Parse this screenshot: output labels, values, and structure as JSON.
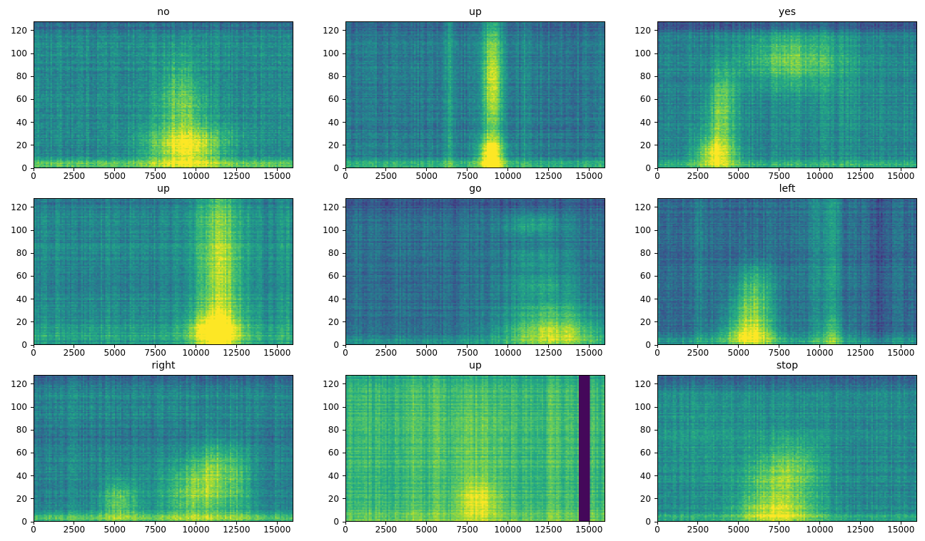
{
  "figure": {
    "background": "#ffffff",
    "colormap": "viridis",
    "layout": "3x3 grid of audio spectrograms (speech commands)",
    "colormap_hex_anchors": [
      "#440154",
      "#472c7a",
      "#3b518b",
      "#2c718e",
      "#21908c",
      "#27ad81",
      "#5cc863",
      "#aadc32",
      "#fde725"
    ]
  },
  "chart_data": [
    {
      "type": "heatmap",
      "title": "no",
      "xlabel": "",
      "ylabel": "",
      "xlim": [
        0,
        16000
      ],
      "ylim": [
        0,
        128
      ],
      "xticks": [
        0,
        2500,
        5000,
        7500,
        10000,
        12500,
        15000
      ],
      "yticks": [
        0,
        20,
        40,
        60,
        80,
        100,
        120
      ],
      "description": "Green-teal noise background; bright yellow energy around x=7500-11000 concentrated below y=40 with harmonic wisps up to y=100; bright band along y=0; slightly darker band at top.",
      "base": 0.47,
      "noise": 0.13,
      "features": [
        {
          "type": "hband",
          "y": 3,
          "sy": 3,
          "amp": 0.3
        },
        {
          "type": "blob",
          "x": 9300,
          "y": 14,
          "sx": 1500,
          "sy": 11,
          "amp": 0.4
        },
        {
          "type": "blob",
          "x": 9800,
          "y": 25,
          "sx": 2200,
          "sy": 10,
          "amp": 0.15
        },
        {
          "type": "blob",
          "x": 9200,
          "y": 45,
          "sx": 1100,
          "sy": 18,
          "amp": 0.22
        },
        {
          "type": "blob",
          "x": 9000,
          "y": 75,
          "sx": 900,
          "sy": 22,
          "amp": 0.18
        },
        {
          "type": "hband",
          "y": 125,
          "sy": 4,
          "amp": -0.12
        }
      ]
    },
    {
      "type": "heatmap",
      "title": "up",
      "xlabel": "",
      "ylabel": "",
      "xlim": [
        0,
        16000
      ],
      "ylim": [
        0,
        128
      ],
      "xticks": [
        0,
        2500,
        5000,
        7500,
        10000,
        12500,
        15000
      ],
      "yticks": [
        0,
        20,
        40,
        60,
        80,
        100,
        120
      ],
      "description": "Darker blue-teal background; strong vertical bright streak near x=9000 spanning full height, brightest near y=0-20; faint vertical stripes near x=6400 and x=11200; bright band along y=0.",
      "base": 0.4,
      "noise": 0.12,
      "features": [
        {
          "type": "hband",
          "y": 3,
          "sy": 3,
          "amp": 0.28
        },
        {
          "type": "vband",
          "x": 9000,
          "sx": 500,
          "amp": 0.22
        },
        {
          "type": "blob",
          "x": 9000,
          "y": 12,
          "sx": 600,
          "sy": 10,
          "amp": 0.45
        },
        {
          "type": "blob",
          "x": 9100,
          "y": 75,
          "sx": 450,
          "sy": 30,
          "amp": 0.28
        },
        {
          "type": "vband",
          "x": 6400,
          "sx": 250,
          "amp": 0.14
        },
        {
          "type": "vband",
          "x": 11200,
          "sx": 250,
          "amp": 0.1
        },
        {
          "type": "vband",
          "x": 13800,
          "sx": 300,
          "amp": -0.06
        },
        {
          "type": "hband",
          "y": 125,
          "sy": 4,
          "amp": -0.1
        }
      ]
    },
    {
      "type": "heatmap",
      "title": "yes",
      "xlabel": "",
      "ylabel": "",
      "xlim": [
        0,
        16000
      ],
      "ylim": [
        0,
        128
      ],
      "xticks": [
        0,
        2500,
        5000,
        7500,
        10000,
        12500,
        15000
      ],
      "yticks": [
        0,
        20,
        40,
        60,
        80,
        100,
        120
      ],
      "description": "Green background; bright yellow vowel energy at x=2500-5500 in low frequencies with harmonics; broad bright high-frequency fricative patch x=6000-11000 around y=80-115; dark band at top.",
      "base": 0.45,
      "noise": 0.12,
      "features": [
        {
          "type": "blob",
          "x": 3600,
          "y": 12,
          "sx": 900,
          "sy": 10,
          "amp": 0.45
        },
        {
          "type": "blob",
          "x": 3900,
          "y": 40,
          "sx": 700,
          "sy": 20,
          "amp": 0.3
        },
        {
          "type": "blob",
          "x": 4100,
          "y": 70,
          "sx": 600,
          "sy": 15,
          "amp": 0.18
        },
        {
          "type": "blob",
          "x": 8300,
          "y": 95,
          "sx": 2200,
          "sy": 18,
          "amp": 0.3
        },
        {
          "type": "blob",
          "x": 12000,
          "y": 60,
          "sx": 3000,
          "sy": 40,
          "amp": 0.05
        },
        {
          "type": "hband",
          "y": 3,
          "sy": 3,
          "amp": 0.22
        },
        {
          "type": "hband",
          "y": 125,
          "sy": 4,
          "amp": -0.18
        }
      ]
    },
    {
      "type": "heatmap",
      "title": "up",
      "xlabel": "",
      "ylabel": "",
      "xlim": [
        0,
        16000
      ],
      "ylim": [
        0,
        128
      ],
      "xticks": [
        0,
        2500,
        5000,
        7500,
        10000,
        12500,
        15000
      ],
      "yticks": [
        0,
        20,
        40,
        60,
        80,
        100,
        120
      ],
      "description": "Uniform green-teal background; strong bright vertical band x=10000-13000 spanning full height, brightest yellow near y=0-25; faint bright rows along bottom across whole width.",
      "base": 0.47,
      "noise": 0.11,
      "features": [
        {
          "type": "vband",
          "x": 11500,
          "sx": 1100,
          "amp": 0.28
        },
        {
          "type": "blob",
          "x": 11200,
          "y": 12,
          "sx": 1100,
          "sy": 11,
          "amp": 0.4
        },
        {
          "type": "blob",
          "x": 11600,
          "y": 60,
          "sx": 900,
          "sy": 30,
          "amp": 0.15
        },
        {
          "type": "hband",
          "y": 8,
          "sy": 7,
          "amp": 0.12
        },
        {
          "type": "vband",
          "x": 15500,
          "sx": 300,
          "amp": 0.08
        },
        {
          "type": "hband",
          "y": 125,
          "sy": 4,
          "amp": -0.08
        }
      ]
    },
    {
      "type": "heatmap",
      "title": "go",
      "xlabel": "",
      "ylabel": "",
      "xlim": [
        0,
        16000
      ],
      "ylim": [
        0,
        128
      ],
      "xticks": [
        0,
        2500,
        5000,
        7500,
        10000,
        12500,
        15000
      ],
      "yticks": [
        0,
        20,
        40,
        60,
        80,
        100,
        120
      ],
      "description": "Dark blue-teal background; speech energy in right half x=9000-16000 as stacked horizontal harmonic bands, very bright yellow below y=25; dark band at top.",
      "base": 0.37,
      "noise": 0.11,
      "features": [
        {
          "type": "blob",
          "x": 12800,
          "y": 10,
          "sx": 2200,
          "sy": 9,
          "amp": 0.5
        },
        {
          "type": "blob",
          "x": 12500,
          "y": 30,
          "sx": 2000,
          "sy": 8,
          "amp": 0.25
        },
        {
          "type": "blob",
          "x": 12000,
          "y": 52,
          "sx": 1800,
          "sy": 8,
          "amp": 0.22
        },
        {
          "type": "blob",
          "x": 11800,
          "y": 75,
          "sx": 1500,
          "sy": 8,
          "amp": 0.15
        },
        {
          "type": "blob",
          "x": 11500,
          "y": 105,
          "sx": 1300,
          "sy": 8,
          "amp": 0.2
        },
        {
          "type": "hband",
          "y": 3,
          "sy": 3,
          "amp": 0.15
        },
        {
          "type": "hband",
          "y": 124,
          "sy": 5,
          "amp": -0.1
        }
      ]
    },
    {
      "type": "heatmap",
      "title": "left",
      "xlabel": "",
      "ylabel": "",
      "xlim": [
        0,
        16000
      ],
      "ylim": [
        0,
        128
      ],
      "xticks": [
        0,
        2500,
        5000,
        7500,
        10000,
        12500,
        15000
      ],
      "yticks": [
        0,
        20,
        40,
        60,
        80,
        100,
        120
      ],
      "description": "Dark blue background with vertical streak texture; bright yellow harmonic stack x=4000-7000 in low/mid frequencies; bright vertical streaks near x=9600 and x=10600; faint stripe near x=2600; darker region near x=13600.",
      "base": 0.36,
      "noise": 0.12,
      "features": [
        {
          "type": "blob",
          "x": 5800,
          "y": 25,
          "sx": 1000,
          "sy": 18,
          "amp": 0.42
        },
        {
          "type": "blob",
          "x": 5600,
          "y": 8,
          "sx": 1300,
          "sy": 8,
          "amp": 0.35
        },
        {
          "type": "blob",
          "x": 6000,
          "y": 55,
          "sx": 800,
          "sy": 15,
          "amp": 0.2
        },
        {
          "type": "vband",
          "x": 10600,
          "sx": 450,
          "amp": 0.22
        },
        {
          "type": "blob",
          "x": 10800,
          "y": 10,
          "sx": 700,
          "sy": 10,
          "amp": 0.15
        },
        {
          "type": "vband",
          "x": 9600,
          "sx": 200,
          "amp": 0.12
        },
        {
          "type": "vband",
          "x": 2600,
          "sx": 250,
          "amp": 0.1
        },
        {
          "type": "vband",
          "x": 13600,
          "sx": 500,
          "amp": -0.08
        },
        {
          "type": "hband",
          "y": 3,
          "sy": 3,
          "amp": 0.18
        }
      ]
    },
    {
      "type": "heatmap",
      "title": "right",
      "xlabel": "",
      "ylabel": "",
      "xlim": [
        0,
        16000
      ],
      "ylim": [
        0,
        128
      ],
      "xticks": [
        0,
        2500,
        5000,
        7500,
        10000,
        12500,
        15000
      ],
      "yticks": [
        0,
        20,
        40,
        60,
        80,
        100,
        120
      ],
      "description": "Green background; small bright blob x=4500-6000 low frequency; rising bright chirp-like energy x=8000-12500 from y=10 up to y=60; bright band along y=0; darker bands near y=77 and at top.",
      "base": 0.46,
      "noise": 0.12,
      "features": [
        {
          "type": "blob",
          "x": 5300,
          "y": 18,
          "sx": 800,
          "sy": 13,
          "amp": 0.3
        },
        {
          "type": "blob",
          "x": 10200,
          "y": 25,
          "sx": 1600,
          "sy": 18,
          "amp": 0.35
        },
        {
          "type": "blob",
          "x": 11200,
          "y": 50,
          "sx": 900,
          "sy": 18,
          "amp": 0.22
        },
        {
          "type": "blob",
          "x": 12800,
          "y": 35,
          "sx": 500,
          "sy": 25,
          "amp": 0.15
        },
        {
          "type": "vband",
          "x": 2500,
          "sx": 150,
          "amp": 0.08
        },
        {
          "type": "hband",
          "y": 3,
          "sy": 3,
          "amp": 0.28
        },
        {
          "type": "hband",
          "y": 77,
          "sy": 5,
          "amp": -0.08
        },
        {
          "type": "hband",
          "y": 125,
          "sy": 4,
          "amp": -0.15
        }
      ]
    },
    {
      "type": "heatmap",
      "title": "up",
      "xlabel": "",
      "ylabel": "",
      "xlim": [
        0,
        16000
      ],
      "ylim": [
        0,
        128
      ],
      "xticks": [
        0,
        2500,
        5000,
        7500,
        10000,
        12500,
        15000
      ],
      "yticks": [
        0,
        20,
        40,
        60,
        80,
        100,
        120
      ],
      "description": "Very bright yellow-green panel overall (high noise floor); brightest yellow blob near x=7500-9000 below y=35; faint vertical streaks; solid dark purple vertical bar near x=14400-15100 (silence).",
      "base": 0.66,
      "noise": 0.09,
      "features": [
        {
          "type": "blob",
          "x": 8200,
          "y": 18,
          "sx": 900,
          "sy": 13,
          "amp": 0.25
        },
        {
          "type": "blob",
          "x": 8000,
          "y": 60,
          "sx": 1200,
          "sy": 40,
          "amp": 0.08
        },
        {
          "type": "vband",
          "x": 4200,
          "sx": 300,
          "amp": 0.08
        },
        {
          "type": "vband",
          "x": 5600,
          "sx": 250,
          "amp": 0.08
        },
        {
          "type": "vband",
          "x": 12800,
          "sx": 250,
          "amp": 0.06
        },
        {
          "type": "hband",
          "y": 3,
          "sy": 4,
          "amp": 0.1
        },
        {
          "type": "hband",
          "y": 125,
          "sy": 3,
          "amp": -0.06
        },
        {
          "type": "bar",
          "x0": 14400,
          "x1": 15100,
          "value": 0.02
        }
      ]
    },
    {
      "type": "heatmap",
      "title": "stop",
      "xlabel": "",
      "ylabel": "",
      "xlim": [
        0,
        16000
      ],
      "ylim": [
        0,
        128
      ],
      "xticks": [
        0,
        2500,
        5000,
        7500,
        10000,
        12500,
        15000
      ],
      "yticks": [
        0,
        20,
        40,
        60,
        80,
        100,
        120
      ],
      "description": "Green background slightly brighter on left-middle; bright yellow energy x=5500-10000 concentrated below y=60; darker band at top.",
      "base": 0.47,
      "noise": 0.12,
      "features": [
        {
          "type": "blob",
          "x": 7600,
          "y": 28,
          "sx": 1600,
          "sy": 20,
          "amp": 0.32
        },
        {
          "type": "blob",
          "x": 7200,
          "y": 8,
          "sx": 1800,
          "sy": 8,
          "amp": 0.25
        },
        {
          "type": "blob",
          "x": 8500,
          "y": 55,
          "sx": 1200,
          "sy": 15,
          "amp": 0.15
        },
        {
          "type": "blob",
          "x": 3500,
          "y": 70,
          "sx": 2500,
          "sy": 35,
          "amp": 0.06
        },
        {
          "type": "hband",
          "y": 3,
          "sy": 3,
          "amp": 0.15
        },
        {
          "type": "hband",
          "y": 124,
          "sy": 5,
          "amp": -0.18
        }
      ]
    }
  ]
}
